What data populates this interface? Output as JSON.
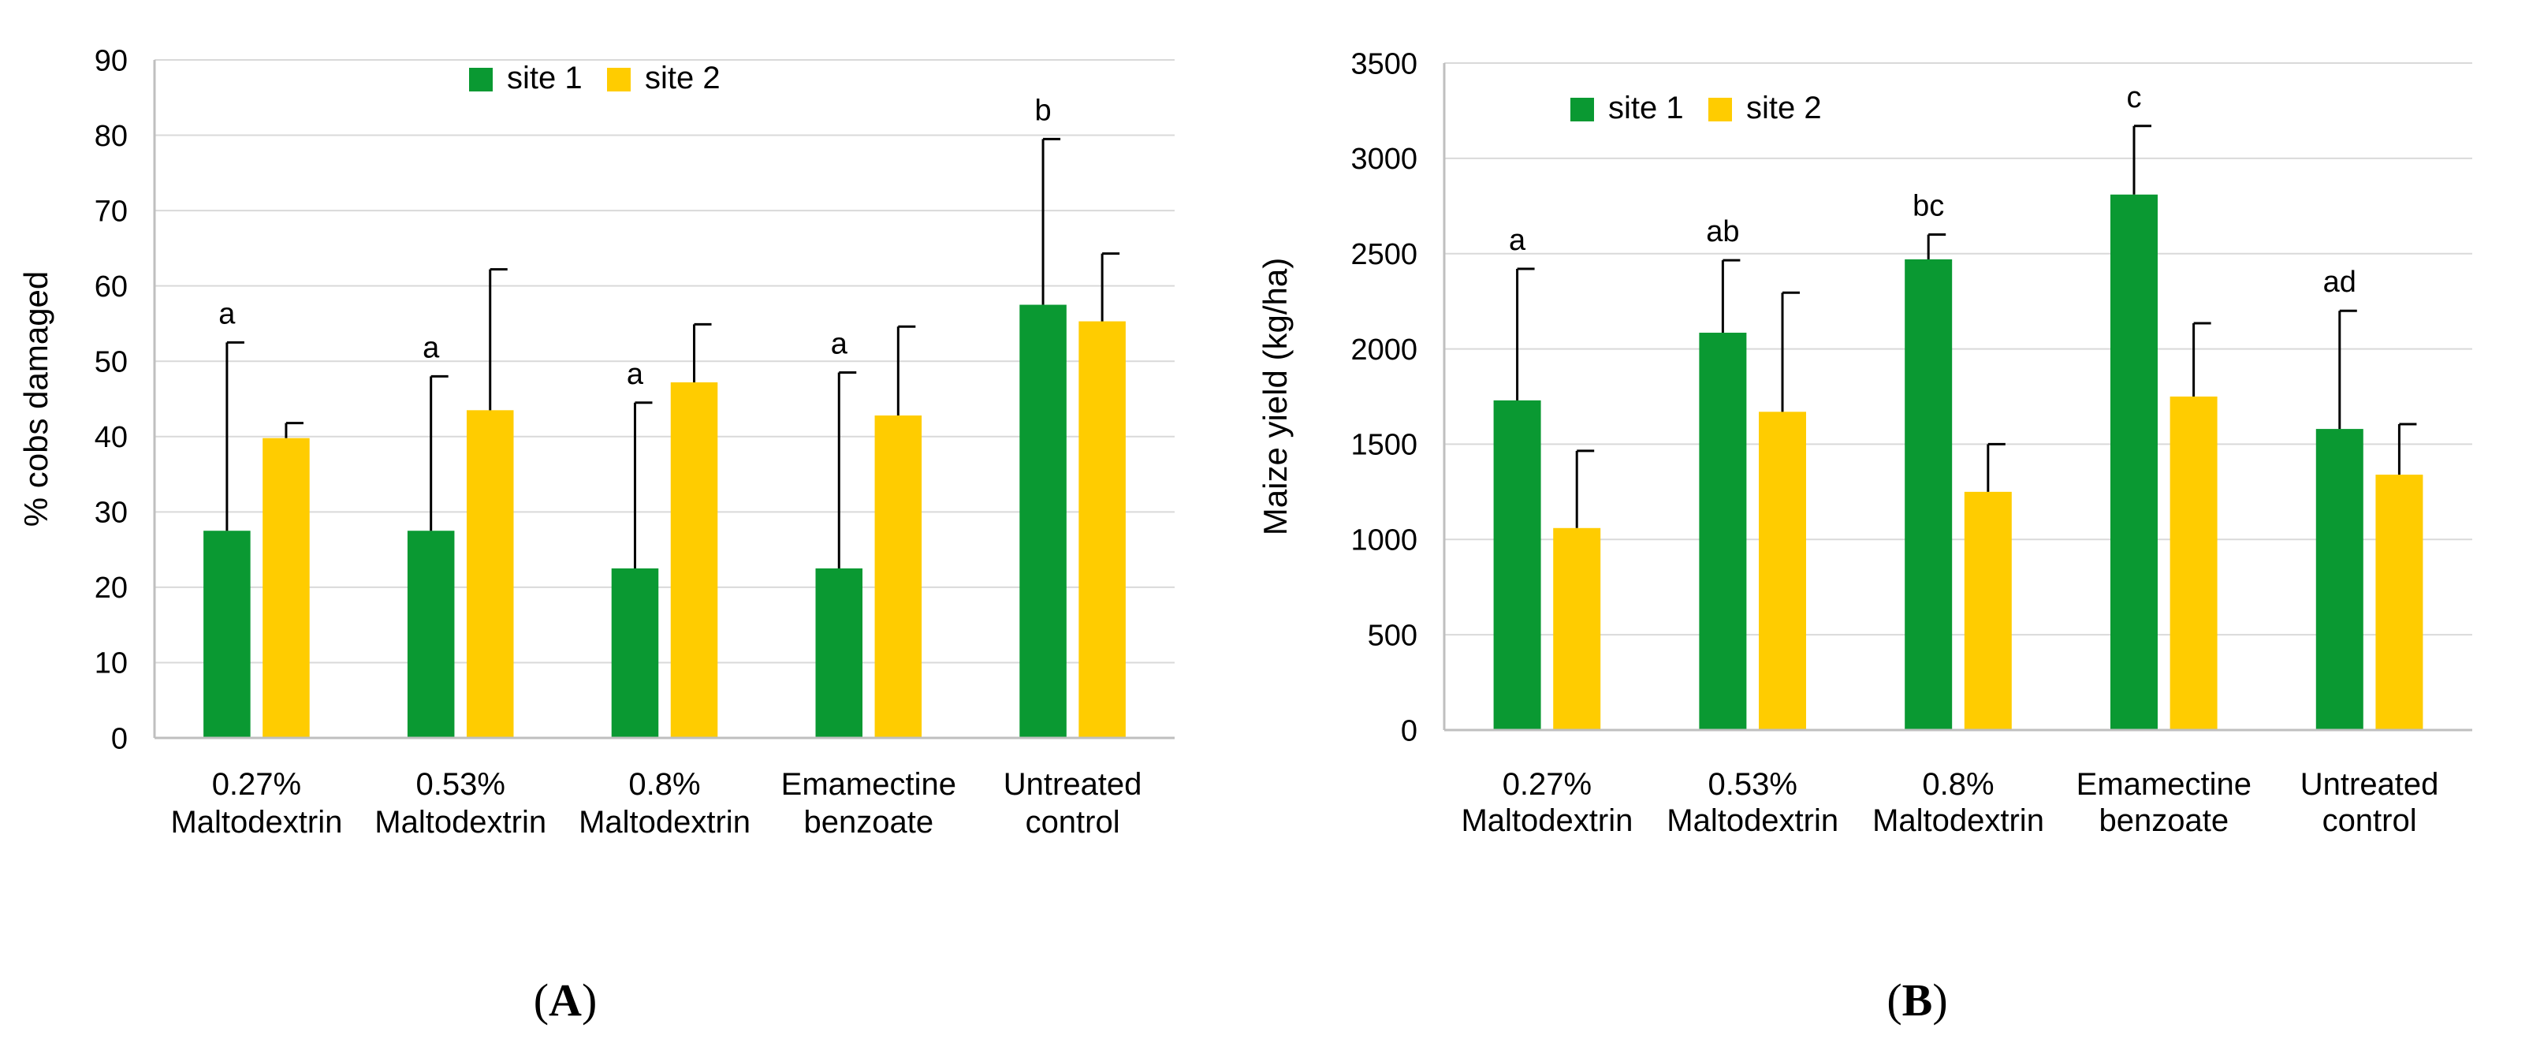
{
  "chart_data": [
    {
      "type": "bar",
      "panel_label": "A",
      "title": "",
      "xlabel": "",
      "ylabel": "% cobs damaged",
      "ylim": [
        0,
        90
      ],
      "yticks": [
        0,
        10,
        20,
        30,
        40,
        50,
        60,
        70,
        80,
        90
      ],
      "grid": true,
      "legend_position": "top-center",
      "categories": [
        [
          "0.27%",
          "Maltodextrin"
        ],
        [
          "0.53%",
          "Maltodextrin"
        ],
        [
          "0.8%",
          "Maltodextrin"
        ],
        [
          "Emamectine",
          "benzoate"
        ],
        [
          "Untreated",
          "control"
        ]
      ],
      "series": [
        {
          "name": "site 1",
          "color": "#0A9932",
          "values": [
            27.5,
            27.5,
            22.5,
            22.5,
            57.5
          ],
          "error": [
            25,
            20.5,
            22,
            26,
            22
          ]
        },
        {
          "name": "site 2",
          "color": "#FFCC00",
          "values": [
            39.8,
            43.5,
            47.2,
            42.8,
            55.3
          ],
          "error": [
            2,
            18.7,
            7.7,
            11.8,
            9
          ]
        }
      ],
      "significance_letters": [
        "a",
        "a",
        "a",
        "a",
        "b"
      ]
    },
    {
      "type": "bar",
      "panel_label": "B",
      "title": "",
      "xlabel": "",
      "ylabel": "Maize yield (kg/ha)",
      "ylim": [
        0,
        3500
      ],
      "yticks": [
        0,
        500,
        1000,
        1500,
        2000,
        2500,
        3000,
        3500
      ],
      "grid": true,
      "legend_position": "top-left",
      "categories": [
        [
          "0.27%",
          "Maltodextrin"
        ],
        [
          "0.53%",
          "Maltodextrin"
        ],
        [
          "0.8%",
          "Maltodextrin"
        ],
        [
          "Emamectine",
          "benzoate"
        ],
        [
          "Untreated",
          "control"
        ]
      ],
      "series": [
        {
          "name": "site 1",
          "color": "#0A9932",
          "values": [
            1730,
            2085,
            2470,
            2810,
            1580
          ],
          "error": [
            690,
            380,
            130,
            360,
            620
          ]
        },
        {
          "name": "site 2",
          "color": "#FFCC00",
          "values": [
            1060,
            1670,
            1250,
            1750,
            1340
          ],
          "error": [
            405,
            625,
            250,
            385,
            265
          ]
        }
      ],
      "significance_letters": [
        "a",
        "ab",
        "bc",
        "c",
        "ad"
      ]
    }
  ]
}
